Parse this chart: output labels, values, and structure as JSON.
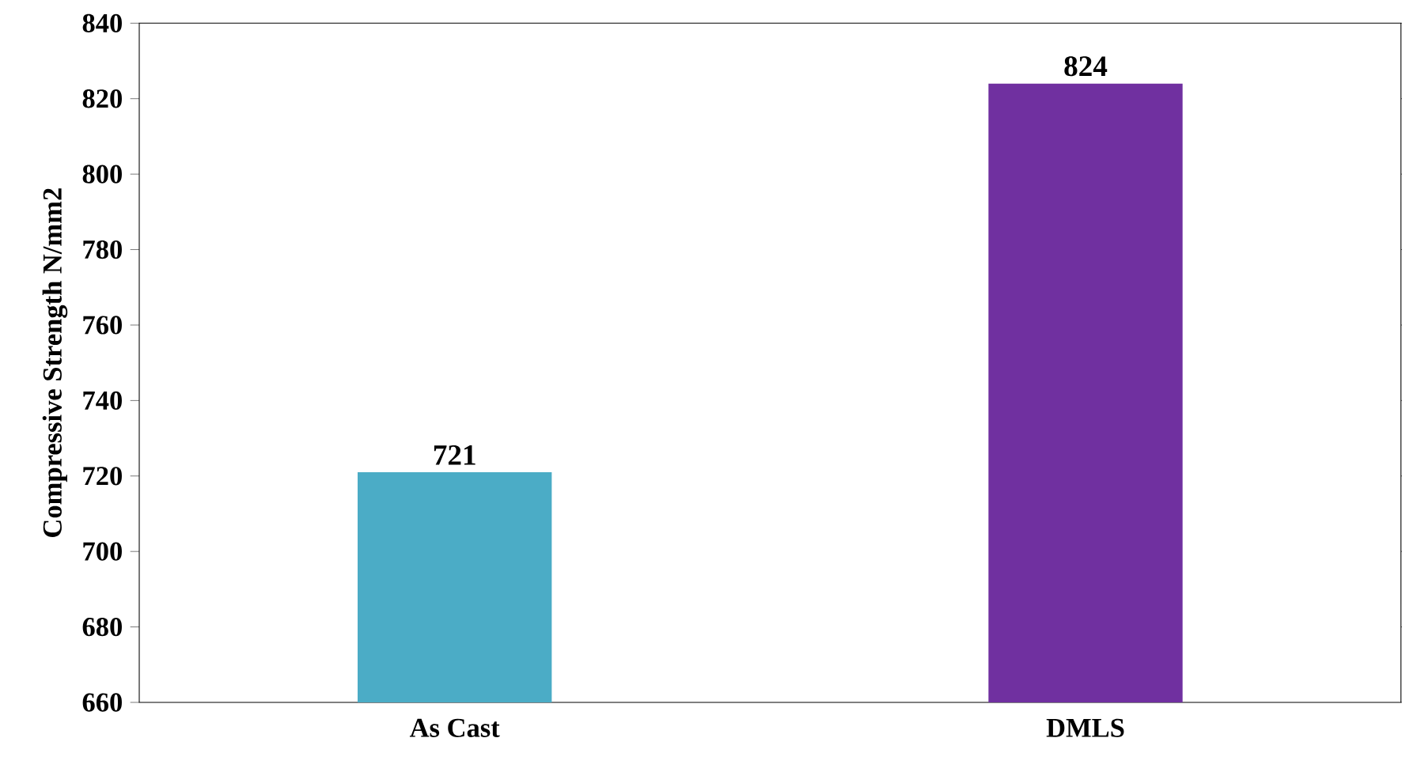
{
  "chart_data": {
    "type": "bar",
    "ylabel": "Compressive Strength N/mm2",
    "categories": [
      "As Cast",
      "DMLS"
    ],
    "values": [
      721,
      824
    ],
    "colors": [
      "#4bacc6",
      "#7030a0"
    ],
    "ylim": [
      660,
      840
    ],
    "yticks": [
      660,
      680,
      700,
      720,
      740,
      760,
      780,
      800,
      820,
      840
    ],
    "data_labels": true,
    "grid": false
  }
}
